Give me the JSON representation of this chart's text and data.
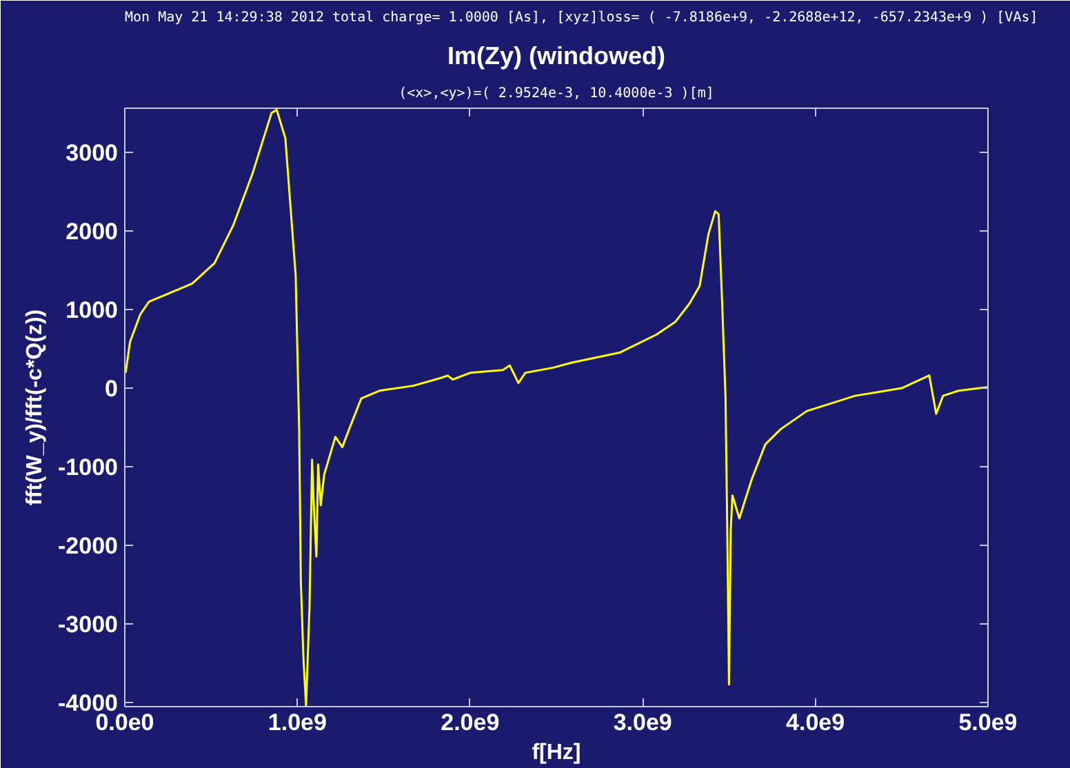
{
  "chart_data": {
    "type": "line",
    "title": "Im(Zy) (windowed)",
    "subtitle": "(<x>,<y>)=( 2.9524e-3, 10.4000e-3 )[m]",
    "annotations": [
      "Mon May 21 14:29:38 2012 total charge= 1.0000 [As], [xyz]loss= ( -7.8186e+9, -2.2688e+12, -657.2343e+9 ) [VAs]"
    ],
    "xlabel": "f[Hz]",
    "ylabel": "fft(W_y)/fft(-c*Q(z))",
    "series": [
      {
        "color": "#ffff00",
        "x": [
          5000000,
          30000000,
          90000000,
          140000000,
          250000000,
          390000000,
          520000000,
          630000000,
          740000000,
          850000000,
          880000000,
          930000000,
          990000000,
          1010000000,
          1020000000,
          1035000000,
          1050000000,
          1070000000,
          1085000000,
          1095000000,
          1110000000,
          1120000000,
          1135000000,
          1155000000,
          1190000000,
          1220000000,
          1260000000,
          1300000000,
          1370000000,
          1480000000,
          1670000000,
          1830000000,
          1870000000,
          1900000000,
          2000000000,
          2190000000,
          2230000000,
          2280000000,
          2320000000,
          2480000000,
          2590000000,
          2870000000,
          3080000000,
          3190000000,
          3270000000,
          3330000000,
          3380000000,
          3420000000,
          3440000000,
          3460000000,
          3480000000,
          3490000000,
          3500000000,
          3510000000,
          3520000000,
          3560000000,
          3630000000,
          3710000000,
          3800000000,
          3950000000,
          4230000000,
          4500000000,
          4660000000,
          4700000000,
          4740000000,
          4830000000,
          5000000000
        ],
        "values": [
          195,
          585,
          940,
          1100,
          1200,
          1330,
          1590,
          2080,
          2730,
          3500,
          3540,
          3180,
          1430,
          -520,
          -2470,
          -3440,
          -4040,
          -2790,
          -910,
          -1490,
          -2140,
          -970,
          -1490,
          -1100,
          -840,
          -620,
          -750,
          -520,
          -130,
          -30,
          30,
          130,
          160,
          110,
          195,
          230,
          290,
          65,
          195,
          260,
          325,
          455,
          682,
          845,
          1072,
          1300,
          1950,
          2250,
          2210,
          1105,
          -130,
          -1815,
          -3770,
          -1815,
          -1365,
          -1657,
          -1170,
          -715,
          -520,
          -292,
          -97,
          0,
          162,
          -325,
          -97,
          -32,
          13
        ]
      }
    ],
    "xlim": [
      0,
      5000000000
    ],
    "xticks": [
      {
        "value": 0,
        "label": "0.0e0"
      },
      {
        "value": 1000000000,
        "label": "1.0e9"
      },
      {
        "value": 2000000000,
        "label": "2.0e9"
      },
      {
        "value": 3000000000,
        "label": "3.0e9"
      },
      {
        "value": 4000000000,
        "label": "4.0e9"
      },
      {
        "value": 5000000000,
        "label": "5.0e9"
      }
    ],
    "ylim": [
      -4050,
      3560
    ],
    "yticks": [
      -4000,
      -3000,
      -2000,
      -1000,
      0,
      1000,
      2000,
      3000
    ],
    "grid": false,
    "marker": "none",
    "line_style": "solid"
  }
}
